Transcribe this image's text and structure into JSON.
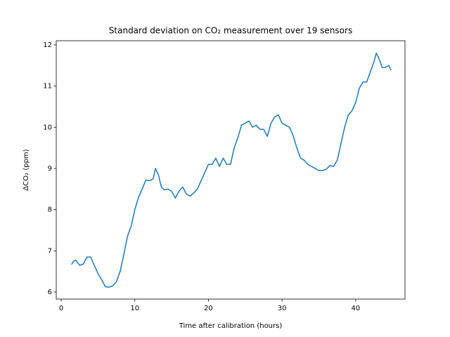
{
  "chart_data": {
    "type": "line",
    "title": "Standard deviation on CO₂ measurement over 19 sensors",
    "xlabel": "Time after calibration (hours)",
    "ylabel": "ΔCO₂ (ppm)",
    "xlim": [
      -0.67,
      46.7
    ],
    "ylim": [
      5.83,
      12.1
    ],
    "xticks": [
      0,
      10,
      20,
      30,
      40
    ],
    "yticks": [
      6,
      7,
      8,
      9,
      10,
      11,
      12
    ],
    "grid": false,
    "series": [
      {
        "color": "#1f77b4",
        "x": [
          1.4,
          1.7,
          2.0,
          2.5,
          3.0,
          3.5,
          4.0,
          4.5,
          5.0,
          5.5,
          6.0,
          6.5,
          7.0,
          7.5,
          8.0,
          8.5,
          9.0,
          9.5,
          10.0,
          10.5,
          11.0,
          11.5,
          12.0,
          12.5,
          12.8,
          13.2,
          13.6,
          14.0,
          14.5,
          15.0,
          15.5,
          16.0,
          16.5,
          17.0,
          17.5,
          18.0,
          18.5,
          19.0,
          19.5,
          20.0,
          20.5,
          21.0,
          21.5,
          22.0,
          22.5,
          23.0,
          23.5,
          24.0,
          24.5,
          25.0,
          25.5,
          26.0,
          26.5,
          27.0,
          27.5,
          28.0,
          28.5,
          29.0,
          29.5,
          30.0,
          30.5,
          31.0,
          31.5,
          32.0,
          32.5,
          33.0,
          33.5,
          34.0,
          34.5,
          35.0,
          35.5,
          36.0,
          36.5,
          37.0,
          37.5,
          38.0,
          38.5,
          39.0,
          39.5,
          40.0,
          40.5,
          41.0,
          41.5,
          42.0,
          42.5,
          42.8,
          43.2,
          43.6,
          44.0,
          44.5,
          44.8
        ],
        "values": [
          6.67,
          6.75,
          6.77,
          6.65,
          6.68,
          6.85,
          6.85,
          6.65,
          6.45,
          6.3,
          6.13,
          6.12,
          6.15,
          6.25,
          6.5,
          6.9,
          7.35,
          7.6,
          8.0,
          8.3,
          8.5,
          8.72,
          8.7,
          8.75,
          9.0,
          8.85,
          8.55,
          8.48,
          8.5,
          8.45,
          8.28,
          8.45,
          8.55,
          8.38,
          8.33,
          8.4,
          8.5,
          8.7,
          8.9,
          9.1,
          9.1,
          9.25,
          9.05,
          9.25,
          9.1,
          9.1,
          9.5,
          9.75,
          10.05,
          10.1,
          10.15,
          10.0,
          10.05,
          9.95,
          9.95,
          9.78,
          10.1,
          10.25,
          10.3,
          10.1,
          10.05,
          10.0,
          9.8,
          9.5,
          9.25,
          9.2,
          9.1,
          9.05,
          9.0,
          8.95,
          8.95,
          8.98,
          9.07,
          9.05,
          9.2,
          9.6,
          10.0,
          10.3,
          10.4,
          10.6,
          10.95,
          11.1,
          11.1,
          11.35,
          11.6,
          11.8,
          11.65,
          11.45,
          11.45,
          11.5,
          11.38
        ]
      }
    ]
  }
}
